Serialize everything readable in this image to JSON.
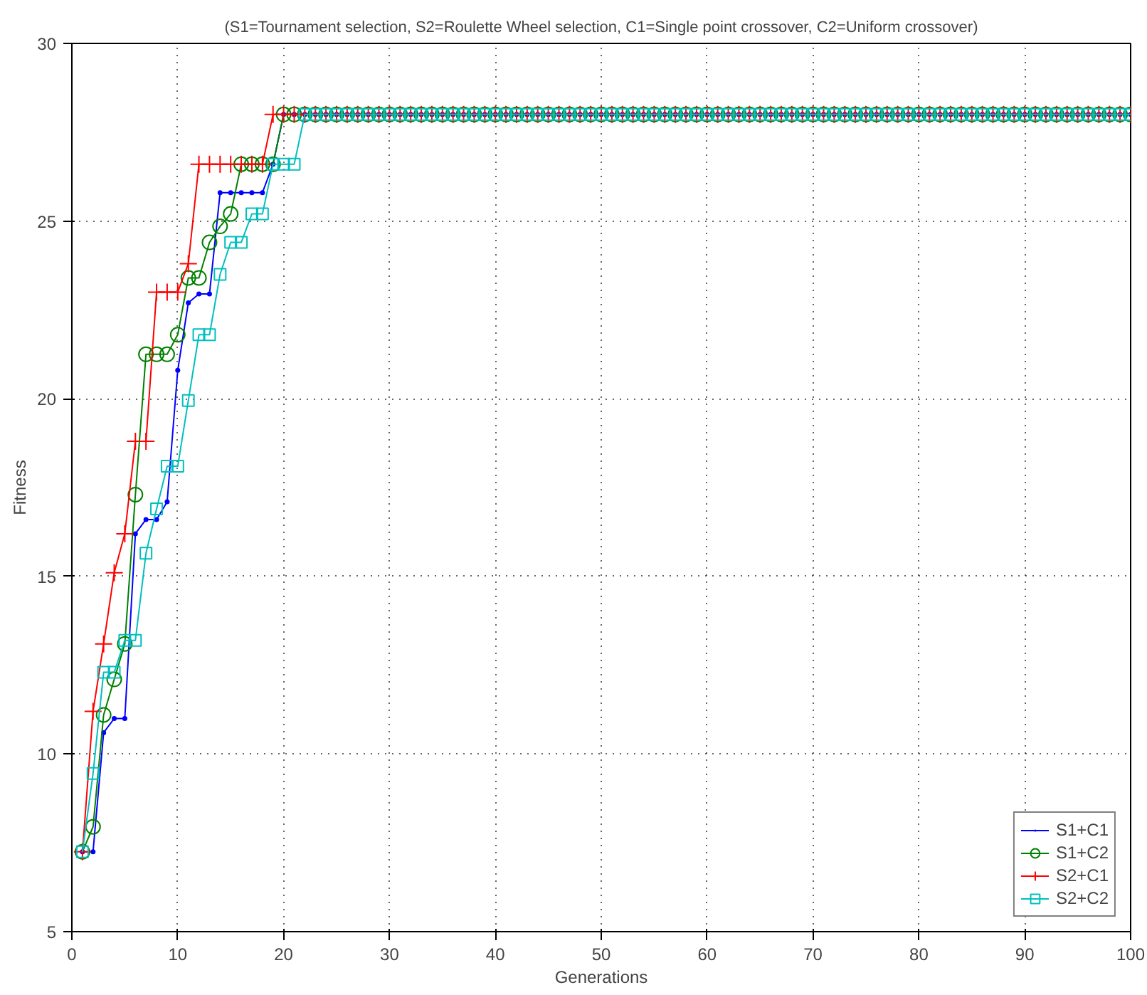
{
  "chart_data": {
    "type": "line",
    "title": "(S1=Tournament selection, S2=Roulette Wheel selection, C1=Single point crossover, C2=Uniform crossover)",
    "xlabel": "Generations",
    "ylabel": "Fitness",
    "x": [
      1,
      2,
      3,
      4,
      5,
      6,
      7,
      8,
      9,
      10,
      11,
      12,
      13,
      14,
      15,
      16,
      17,
      18,
      19,
      20,
      21,
      22,
      23,
      24,
      25,
      26,
      27,
      28,
      29,
      30,
      31,
      32,
      33,
      34,
      35,
      36,
      37,
      38,
      39,
      40,
      41,
      42,
      43,
      44,
      45,
      46,
      47,
      48,
      49,
      50,
      51,
      52,
      53,
      54,
      55,
      56,
      57,
      58,
      59,
      60,
      61,
      62,
      63,
      64,
      65,
      66,
      67,
      68,
      69,
      70,
      71,
      72,
      73,
      74,
      75,
      76,
      77,
      78,
      79,
      80,
      81,
      82,
      83,
      84,
      85,
      86,
      87,
      88,
      89,
      90,
      91,
      92,
      93,
      94,
      95,
      96,
      97,
      98,
      99,
      100
    ],
    "series": [
      {
        "name": "S1+C1",
        "color": "#0000ff",
        "marker": "dot",
        "values": [
          7.25,
          7.25,
          10.6,
          11.0,
          11.0,
          16.2,
          16.6,
          16.6,
          17.1,
          20.8,
          22.7,
          22.95,
          22.95,
          25.8,
          25.8,
          25.8,
          25.8,
          25.8,
          26.6,
          28,
          28,
          28,
          28,
          28,
          28,
          28,
          28,
          28,
          28,
          28,
          28,
          28,
          28,
          28,
          28,
          28,
          28,
          28,
          28,
          28,
          28,
          28,
          28,
          28,
          28,
          28,
          28,
          28,
          28,
          28,
          28,
          28,
          28,
          28,
          28,
          28,
          28,
          28,
          28,
          28,
          28,
          28,
          28,
          28,
          28,
          28,
          28,
          28,
          28,
          28,
          28,
          28,
          28,
          28,
          28,
          28,
          28,
          28,
          28,
          28,
          28,
          28,
          28,
          28,
          28,
          28,
          28,
          28,
          28,
          28,
          28,
          28,
          28,
          28,
          28,
          28,
          28,
          28,
          28,
          28
        ]
      },
      {
        "name": "S1+C2",
        "color": "#008000",
        "marker": "circle",
        "values": [
          7.25,
          7.95,
          11.1,
          12.1,
          13.1,
          17.3,
          21.25,
          21.25,
          21.25,
          21.8,
          23.4,
          23.4,
          24.4,
          24.85,
          25.2,
          26.6,
          26.6,
          26.6,
          26.6,
          28,
          28,
          28,
          28,
          28,
          28,
          28,
          28,
          28,
          28,
          28,
          28,
          28,
          28,
          28,
          28,
          28,
          28,
          28,
          28,
          28,
          28,
          28,
          28,
          28,
          28,
          28,
          28,
          28,
          28,
          28,
          28,
          28,
          28,
          28,
          28,
          28,
          28,
          28,
          28,
          28,
          28,
          28,
          28,
          28,
          28,
          28,
          28,
          28,
          28,
          28,
          28,
          28,
          28,
          28,
          28,
          28,
          28,
          28,
          28,
          28,
          28,
          28,
          28,
          28,
          28,
          28,
          28,
          28,
          28,
          28,
          28,
          28,
          28,
          28,
          28,
          28,
          28,
          28,
          28,
          28
        ]
      },
      {
        "name": "S2+C1",
        "color": "#ff0000",
        "marker": "cross",
        "values": [
          7.25,
          11.2,
          13.1,
          15.1,
          16.2,
          18.8,
          18.8,
          23.0,
          23.0,
          23.0,
          23.8,
          26.6,
          26.6,
          26.6,
          26.6,
          26.6,
          26.6,
          26.6,
          28,
          28,
          28,
          28,
          28,
          28,
          28,
          28,
          28,
          28,
          28,
          28,
          28,
          28,
          28,
          28,
          28,
          28,
          28,
          28,
          28,
          28,
          28,
          28,
          28,
          28,
          28,
          28,
          28,
          28,
          28,
          28,
          28,
          28,
          28,
          28,
          28,
          28,
          28,
          28,
          28,
          28,
          28,
          28,
          28,
          28,
          28,
          28,
          28,
          28,
          28,
          28,
          28,
          28,
          28,
          28,
          28,
          28,
          28,
          28,
          28,
          28,
          28,
          28,
          28,
          28,
          28,
          28,
          28,
          28,
          28,
          28,
          28,
          28,
          28,
          28,
          28,
          28,
          28,
          28,
          28,
          28
        ]
      },
      {
        "name": "S2+C2",
        "color": "#00bfbf",
        "marker": "square",
        "values": [
          7.25,
          9.45,
          12.3,
          12.3,
          13.2,
          13.2,
          15.65,
          16.9,
          18.1,
          18.1,
          19.95,
          21.8,
          21.8,
          23.5,
          24.4,
          24.4,
          25.2,
          25.2,
          26.6,
          26.6,
          26.6,
          28,
          28,
          28,
          28,
          28,
          28,
          28,
          28,
          28,
          28,
          28,
          28,
          28,
          28,
          28,
          28,
          28,
          28,
          28,
          28,
          28,
          28,
          28,
          28,
          28,
          28,
          28,
          28,
          28,
          28,
          28,
          28,
          28,
          28,
          28,
          28,
          28,
          28,
          28,
          28,
          28,
          28,
          28,
          28,
          28,
          28,
          28,
          28,
          28,
          28,
          28,
          28,
          28,
          28,
          28,
          28,
          28,
          28,
          28,
          28,
          28,
          28,
          28,
          28,
          28,
          28,
          28,
          28,
          28,
          28,
          28,
          28,
          28,
          28,
          28,
          28,
          28,
          28,
          28
        ]
      }
    ],
    "xlim": [
      0,
      100
    ],
    "xticks": [
      0,
      10,
      20,
      30,
      40,
      50,
      60,
      70,
      80,
      90,
      100
    ],
    "ylim": [
      5,
      30
    ],
    "yticks": [
      5,
      10,
      15,
      20,
      25,
      30
    ],
    "grid": true,
    "legend": "bottom right",
    "line_style": "solid"
  }
}
